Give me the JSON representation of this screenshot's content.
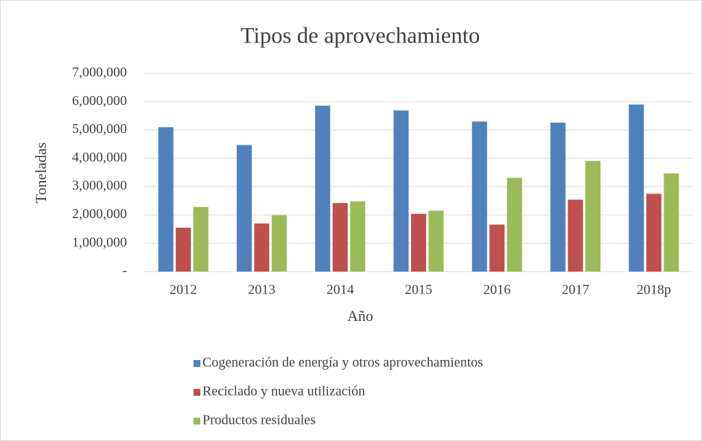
{
  "chart_data": {
    "type": "bar",
    "title": "Tipos de aprovechamiento",
    "x_label": "Año",
    "y_label": "Toneladas",
    "categories": [
      "2012",
      "2013",
      "2014",
      "2015",
      "2016",
      "2017",
      "2018p"
    ],
    "series": [
      {
        "name": "Cogeneración de energía y otros aprovechamientos",
        "color": "#4f81bd",
        "values": [
          5100000,
          4470000,
          5860000,
          5690000,
          5300000,
          5260000,
          5900000
        ]
      },
      {
        "name": "Reciclado y nueva utilización",
        "color": "#c0504d",
        "values": [
          1550000,
          1700000,
          2420000,
          2040000,
          1660000,
          2540000,
          2750000
        ]
      },
      {
        "name": "Productos residuales",
        "color": "#9bbb59",
        "values": [
          2280000,
          1990000,
          2480000,
          2150000,
          3310000,
          3910000,
          3470000
        ]
      }
    ],
    "ylim": [
      0,
      7000000
    ],
    "yticks": [
      {
        "value": 0,
        "label": "-"
      },
      {
        "value": 1000000,
        "label": "1,000,000"
      },
      {
        "value": 2000000,
        "label": "2,000,000"
      },
      {
        "value": 3000000,
        "label": "3,000,000"
      },
      {
        "value": 4000000,
        "label": "4,000,000"
      },
      {
        "value": 5000000,
        "label": "5,000,000"
      },
      {
        "value": 6000000,
        "label": "6,000,000"
      },
      {
        "value": 7000000,
        "label": "7,000,000"
      }
    ],
    "grid": true,
    "legend": "bottom"
  }
}
